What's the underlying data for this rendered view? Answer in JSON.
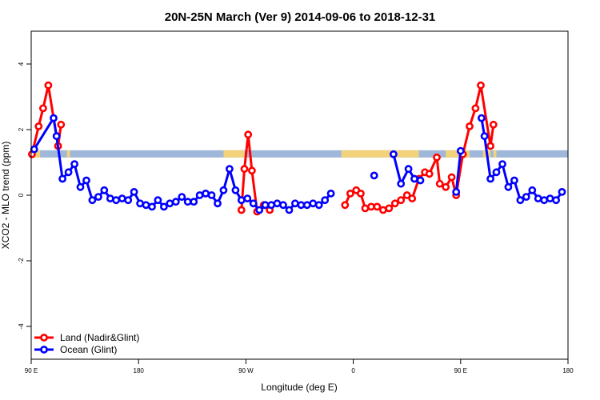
{
  "chart_data": {
    "type": "line",
    "title": "20N-25N March (Ver 9)   2014-09-06 to 2018-12-31",
    "xlabel": "Longitude (deg E)",
    "ylabel": "XCO2 - MLO trend (ppm)",
    "xlim": [
      90,
      450
    ],
    "ylim": [
      -5,
      5
    ],
    "x_ticks": [
      {
        "value": 90,
        "label": "90 E"
      },
      {
        "value": 162,
        "label": "180"
      },
      {
        "value": 234,
        "label": "90 W"
      },
      {
        "value": 306,
        "label": "0"
      },
      {
        "value": 378,
        "label": "90 E"
      },
      {
        "value": 450,
        "label": "180"
      }
    ],
    "y_ticks": [
      -4,
      -2,
      0,
      2,
      4
    ],
    "grid": false,
    "legend_position": "bottom-left",
    "land_ocean_band": {
      "y_range": [
        1.15,
        1.37
      ],
      "ocean_color": "#9fb7d9",
      "land_color": "#f2d27a",
      "land_spans": [
        [
          90,
          96
        ],
        [
          114,
          116
        ],
        [
          219,
          233
        ],
        [
          298,
          350
        ],
        [
          368,
          384
        ],
        [
          393,
          398
        ],
        [
          400,
          402
        ]
      ]
    },
    "series": [
      {
        "name": "Land (Nadir&Glint)",
        "color": "#ff0000",
        "segments": [
          [
            [
              90.5,
              1.25
            ],
            [
              95,
              2.1
            ],
            [
              98,
              2.65
            ],
            [
              101.5,
              3.35
            ],
            [
              108,
              1.5
            ],
            [
              110,
              2.15
            ]
          ],
          [
            [
              231,
              -0.45
            ],
            [
              233,
              0.8
            ],
            [
              235.5,
              1.85
            ],
            [
              238,
              0.75
            ],
            [
              241.5,
              -0.5
            ],
            [
              246,
              -0.3
            ],
            [
              250,
              -0.45
            ]
          ],
          [
            [
              300.5,
              -0.3
            ],
            [
              304,
              0.05
            ],
            [
              308,
              0.15
            ],
            [
              311,
              0.05
            ],
            [
              314,
              -0.4
            ],
            [
              318,
              -0.35
            ],
            [
              322,
              -0.35
            ],
            [
              326,
              -0.45
            ],
            [
              330,
              -0.4
            ],
            [
              334,
              -0.25
            ],
            [
              338,
              -0.15
            ],
            [
              342,
              0.0
            ],
            [
              345.5,
              -0.1
            ],
            [
              350,
              0.5
            ],
            [
              354,
              0.7
            ],
            [
              357,
              0.65
            ],
            [
              362,
              1.15
            ],
            [
              364,
              0.35
            ],
            [
              368,
              0.25
            ],
            [
              372,
              0.55
            ],
            [
              375,
              0.0
            ],
            [
              379.5,
              1.25
            ],
            [
              384,
              2.1
            ],
            [
              388,
              2.65
            ],
            [
              391.5,
              3.35
            ],
            [
              398,
              1.5
            ],
            [
              400,
              2.15
            ]
          ]
        ]
      },
      {
        "name": "Ocean (Glint)",
        "color": "#0000ff",
        "segments": [
          [
            [
              92,
              1.4
            ],
            [
              105,
              2.35
            ],
            [
              107,
              1.8
            ],
            [
              111,
              0.5
            ],
            [
              115,
              0.7
            ],
            [
              119,
              0.95
            ],
            [
              123,
              0.25
            ],
            [
              127,
              0.45
            ],
            [
              131,
              -0.15
            ],
            [
              135,
              -0.05
            ],
            [
              139,
              0.15
            ],
            [
              143,
              -0.1
            ],
            [
              147,
              -0.15
            ],
            [
              151,
              -0.1
            ],
            [
              155,
              -0.15
            ],
            [
              159,
              0.1
            ],
            [
              163,
              -0.25
            ],
            [
              167,
              -0.3
            ],
            [
              171,
              -0.35
            ],
            [
              175,
              -0.15
            ],
            [
              179,
              -0.35
            ],
            [
              183,
              -0.25
            ],
            [
              187,
              -0.2
            ],
            [
              191,
              -0.05
            ],
            [
              195,
              -0.2
            ],
            [
              199,
              -0.2
            ],
            [
              203,
              0.0
            ],
            [
              207,
              0.05
            ],
            [
              211,
              0.0
            ],
            [
              215,
              -0.25
            ],
            [
              219,
              0.15
            ],
            [
              223,
              0.8
            ],
            [
              227,
              0.15
            ],
            [
              231,
              -0.15
            ],
            [
              235,
              -0.1
            ],
            [
              239,
              -0.25
            ],
            [
              243,
              -0.45
            ],
            [
              247,
              -0.3
            ],
            [
              251,
              -0.3
            ],
            [
              255,
              -0.25
            ],
            [
              259,
              -0.3
            ],
            [
              263,
              -0.45
            ],
            [
              267,
              -0.25
            ],
            [
              271,
              -0.3
            ],
            [
              275,
              -0.3
            ],
            [
              279,
              -0.25
            ],
            [
              283,
              -0.3
            ],
            [
              287,
              -0.15
            ],
            [
              291,
              0.05
            ]
          ],
          [
            [
              320,
              0.6
            ]
          ],
          [
            [
              333,
              1.25
            ],
            [
              338,
              0.35
            ],
            [
              343,
              0.8
            ],
            [
              347,
              0.5
            ],
            [
              351,
              0.45
            ]
          ],
          [
            [
              375,
              0.1
            ],
            [
              378,
              1.35
            ]
          ],
          [
            [
              392,
              2.35
            ],
            [
              394,
              1.8
            ],
            [
              398,
              0.5
            ],
            [
              402,
              0.7
            ],
            [
              406,
              0.95
            ],
            [
              410,
              0.25
            ],
            [
              414,
              0.45
            ],
            [
              418,
              -0.15
            ],
            [
              422,
              -0.05
            ],
            [
              426,
              0.15
            ],
            [
              430,
              -0.1
            ],
            [
              434,
              -0.15
            ],
            [
              438,
              -0.1
            ],
            [
              442,
              -0.15
            ],
            [
              446,
              0.1
            ]
          ]
        ]
      }
    ]
  }
}
